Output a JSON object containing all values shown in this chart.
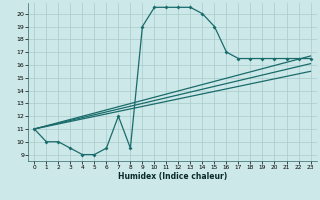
{
  "xlabel": "Humidex (Indice chaleur)",
  "bg_color": "#cde8e8",
  "grid_color": "#aacccc",
  "line_color": "#1a6b6b",
  "xlim": [
    -0.5,
    23.5
  ],
  "ylim": [
    8.5,
    20.8
  ],
  "yticks": [
    9,
    10,
    11,
    12,
    13,
    14,
    15,
    16,
    17,
    18,
    19,
    20
  ],
  "xticks": [
    0,
    1,
    2,
    3,
    4,
    5,
    6,
    7,
    8,
    9,
    10,
    11,
    12,
    13,
    14,
    15,
    16,
    17,
    18,
    19,
    20,
    21,
    22,
    23
  ],
  "curve1_x": [
    0,
    1,
    2,
    3,
    4,
    5,
    6,
    7,
    8,
    9,
    10,
    11,
    12,
    13,
    14,
    15,
    16,
    17,
    18,
    19,
    20,
    21,
    22,
    23
  ],
  "curve1_y": [
    11,
    10,
    10,
    9.5,
    9,
    9,
    9.5,
    12.0,
    9.5,
    19,
    20.5,
    20.5,
    20.5,
    20.5,
    20,
    19,
    17,
    16.5,
    16.5,
    16.5,
    16.5,
    16.5,
    16.5,
    16.5
  ],
  "curve2_x": [
    0,
    23
  ],
  "curve2_y": [
    11,
    16.7
  ],
  "curve3_x": [
    0,
    23
  ],
  "curve3_y": [
    11,
    15.5
  ],
  "curve4_x": [
    0,
    23
  ],
  "curve4_y": [
    11,
    16.1
  ]
}
